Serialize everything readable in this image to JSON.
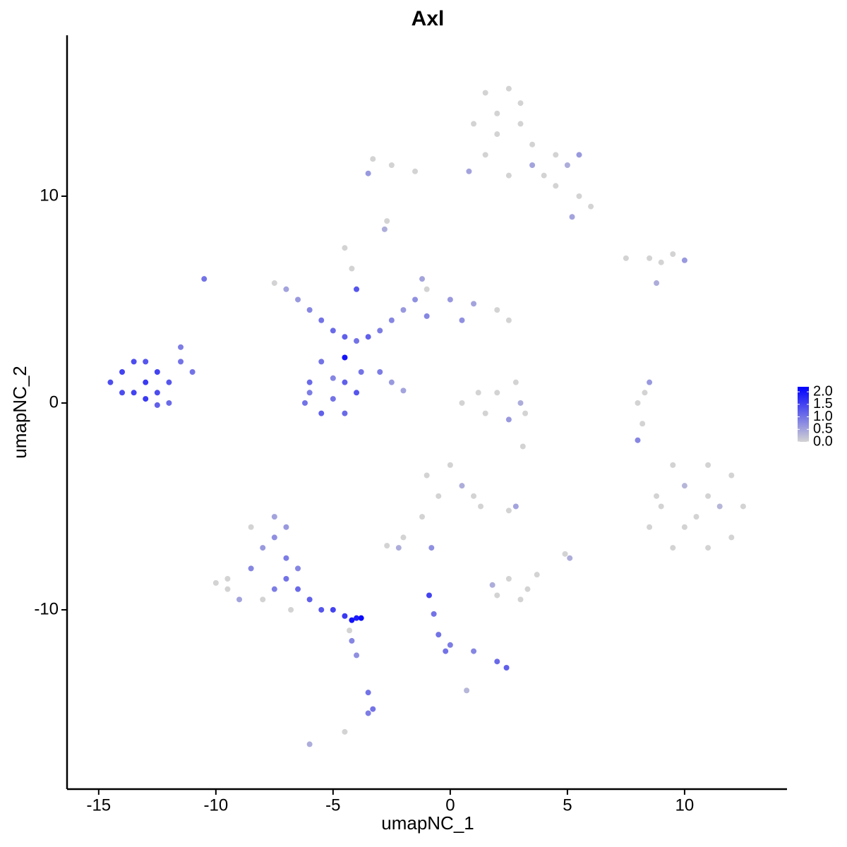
{
  "chart_data": {
    "type": "scatter",
    "title": "Axl",
    "x_label": "umapNC_1",
    "y_label": "umapNC_2",
    "xlim": [
      -16.35,
      14.37
    ],
    "ylim": [
      -18.67,
      17.78
    ],
    "xticks": [
      -15,
      -10,
      -5,
      0,
      5,
      10
    ],
    "yticks": [
      -10,
      0,
      10
    ],
    "color_low": "#d3d3d3",
    "color_high": "#0000ff",
    "color_lim": [
      0,
      2.2
    ],
    "color_ticks": [
      {
        "value": 0,
        "label": "0.0"
      },
      {
        "value": 0.5,
        "label": "0.5"
      },
      {
        "value": 1,
        "label": "1.0"
      },
      {
        "value": 1.5,
        "label": "1.5"
      },
      {
        "value": 2,
        "label": "2.0"
      }
    ],
    "x": [
      1.5,
      2.5,
      3,
      2,
      1,
      3,
      2,
      3.5,
      1.5,
      0.8,
      -1.5,
      -2.5,
      -3.3,
      -3.5,
      4,
      4.5,
      5,
      5.5,
      5.5,
      6,
      5.2,
      4.5,
      3.5,
      2.5,
      -2.7,
      -2.8,
      7.5,
      8.5,
      9.5,
      9,
      10,
      8.8,
      -7.5,
      -7,
      -6.5,
      -6,
      -5.5,
      -5,
      -4.5,
      -4,
      -3.5,
      -3,
      -2.5,
      -2,
      -1.5,
      -1,
      -1.2,
      0,
      1,
      2,
      2.5,
      0.5,
      -1,
      -5.5,
      -6,
      -6.2,
      -5.5,
      -4.5,
      -4,
      -3.8,
      -4.5,
      -5,
      -5,
      -4.5,
      -6,
      -3,
      -2.5,
      -2,
      -4.2,
      -4.5,
      -4,
      -14.5,
      -14,
      -13.5,
      -13,
      -12.5,
      -13,
      -13.5,
      -14,
      -12,
      -12.5,
      -11.5,
      -11.5,
      -11,
      -12,
      -12.5,
      -13,
      -10.5,
      0.5,
      1.5,
      2.5,
      3.2,
      2,
      2.8,
      3,
      1.2,
      3.1,
      9,
      10,
      11,
      12,
      12.5,
      12,
      11,
      9.5,
      8.5,
      10.5,
      11.5,
      10,
      11,
      9.5,
      8.8,
      8,
      8.2,
      8.5,
      8.3,
      8,
      -1,
      0,
      0.5,
      -0.5,
      1,
      1.3,
      -1.2,
      -2,
      -2.7,
      -2.2,
      -0.8,
      2.8,
      2.5,
      -9.5,
      -9,
      -8.5,
      -8,
      -8.5,
      -7.5,
      -7,
      -7.5,
      -8,
      -7,
      -6.5,
      -6,
      -5.5,
      -5,
      -4.5,
      -4,
      -3.8,
      -4.2,
      -7.5,
      -9.5,
      -10,
      -6.8,
      -7,
      -6.5,
      -4.3,
      -4.2,
      -4,
      -3.5,
      -3.3,
      -3.5,
      -4.5,
      -6,
      -0.9,
      -0.7,
      -0.5,
      -0.2,
      0,
      1,
      2,
      2.4,
      0.7,
      2.5,
      2,
      3,
      1.8,
      3.3,
      3.7,
      4.9,
      5.1
    ],
    "y": [
      15,
      15.2,
      14.5,
      14,
      13.5,
      13.5,
      13,
      12.5,
      12,
      11.2,
      11.2,
      11.5,
      11.8,
      11.1,
      11,
      10.5,
      11.5,
      12,
      10,
      9.5,
      9,
      12,
      11.5,
      11,
      8.8,
      8.4,
      7,
      7,
      7.2,
      6.8,
      6.9,
      5.8,
      5.8,
      5.5,
      5,
      4.5,
      4,
      3.5,
      3.2,
      3,
      3.2,
      3.5,
      4,
      4.5,
      5,
      5.5,
      6,
      5,
      4.8,
      4.5,
      4,
      4,
      4.2,
      2,
      1,
      0,
      -0.5,
      -0.5,
      0.5,
      1.5,
      2.2,
      1.2,
      0.2,
      1,
      0.5,
      1.5,
      1,
      0.6,
      6.5,
      7.5,
      5.5,
      1,
      1.5,
      2,
      2,
      1.5,
      1,
      0.5,
      0.5,
      1,
      0.5,
      2,
      2.7,
      1.5,
      0,
      -0.1,
      0.2,
      6,
      0,
      -0.5,
      -0.8,
      -0.5,
      0.5,
      1,
      0,
      0.5,
      -2.1,
      -5,
      -4,
      -3,
      -3.5,
      -5,
      -6.5,
      -7,
      -7,
      -6,
      -5.5,
      -5,
      -6,
      -4.5,
      -3,
      -4.5,
      0,
      -1,
      1,
      0.5,
      -1.8,
      -3.5,
      -3,
      -4,
      -4.5,
      -4.5,
      -5,
      -5.5,
      -6.5,
      -6.9,
      -7,
      -7,
      -5,
      -5.2,
      -8.5,
      -9.5,
      -8,
      -7,
      -6,
      -6.5,
      -7.5,
      -9,
      -9.5,
      -8.5,
      -9,
      -9.5,
      -10,
      -10,
      -10.3,
      -10.4,
      -10.4,
      -10.5,
      -5.5,
      -9,
      -8.7,
      -10,
      -6,
      -8,
      -11,
      -11.5,
      -12.2,
      -14,
      -14.8,
      -15,
      -15.9,
      -16.5,
      -9.3,
      -10.2,
      -11.2,
      -12,
      -11.7,
      -12,
      -12.5,
      -12.8,
      -13.9,
      -8.5,
      -9.3,
      -9.5,
      -8.8,
      -9,
      -8.3,
      -7.3,
      -7.5
    ],
    "values": [
      0,
      0,
      0,
      0,
      0,
      0,
      0,
      0,
      0,
      0.5,
      0,
      0,
      0,
      0.6,
      0,
      0,
      0.4,
      0.6,
      0,
      0,
      0.5,
      0,
      0.5,
      0,
      0,
      0.4,
      0,
      0,
      0,
      0,
      0.6,
      0.4,
      0,
      0.5,
      0.6,
      0.8,
      1.0,
      1.1,
      1.2,
      1.0,
      1.2,
      0.9,
      0.8,
      0.6,
      0.7,
      0,
      0.5,
      0.6,
      0.5,
      0,
      0,
      0.7,
      0.8,
      1.0,
      1.1,
      1.0,
      1.2,
      1.1,
      1.3,
      1.0,
      2.0,
      0.8,
      1.0,
      1.2,
      0.9,
      0.9,
      0.6,
      0.5,
      0,
      0,
      1.3,
      1.4,
      1.5,
      1.4,
      1.3,
      1.5,
      1.6,
      1.5,
      1.4,
      1.3,
      1.4,
      1.0,
      0.9,
      1.0,
      1.1,
      1.2,
      1.6,
      1.0,
      0,
      0,
      0.6,
      0,
      0,
      0,
      0.4,
      0,
      0,
      0,
      0.3,
      0,
      0,
      0,
      0,
      0,
      0,
      0,
      0,
      0.3,
      0,
      0,
      0,
      0,
      0,
      0,
      0.6,
      0,
      0.8,
      0,
      0,
      0.4,
      0,
      0,
      0,
      0,
      0,
      0,
      0.4,
      0.7,
      0.5,
      0,
      0,
      0.5,
      0.8,
      0.6,
      0,
      0.7,
      0.9,
      0.9,
      0,
      1.0,
      1.1,
      1.2,
      1.3,
      1.5,
      1.6,
      1.9,
      2.1,
      2.0,
      0.5,
      0,
      0,
      0,
      0.6,
      0.8,
      0,
      0.8,
      0.7,
      1.0,
      1.0,
      0.9,
      0,
      0.4,
      1.5,
      1.0,
      1.0,
      1.0,
      0.9,
      0.8,
      1.1,
      1.2,
      0.3,
      0,
      0,
      0,
      0.4,
      0,
      0,
      0,
      0.4
    ]
  }
}
